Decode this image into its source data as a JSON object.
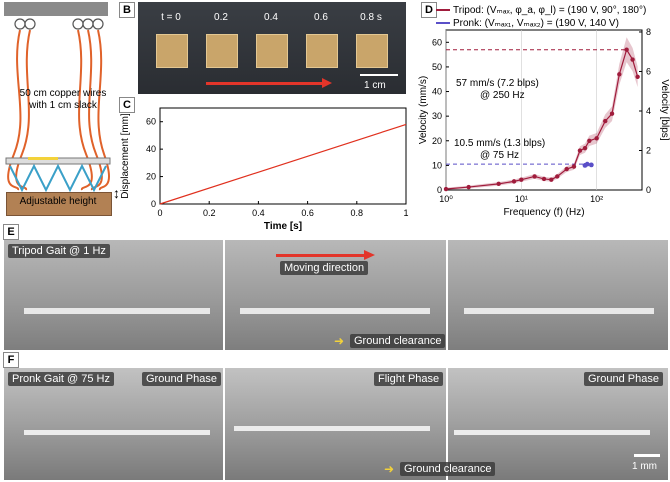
{
  "panels": {
    "A": {
      "label": "A",
      "wires_text_1": "50 cm copper wires",
      "wires_text_2": "with 1 cm slack",
      "height_text": "Adjustable height"
    },
    "B": {
      "label": "B",
      "times": [
        "t = 0",
        "0.2",
        "0.4",
        "0.6",
        "0.8 s"
      ],
      "scalebar": "1 cm"
    },
    "C": {
      "label": "C"
    },
    "D": {
      "label": "D",
      "legend_tripod": "Tripod: (Vₘₐₓ, φ_a, φ_l) = (190 V, 90°, 180°)",
      "legend_pronk": "Pronk: (Vₘₐₓ₁, Vₘₐₓ₂) = (190 V, 140 V)",
      "annot1_a": "57 mm/s (7.2 blps)",
      "annot1_b": "@ 250 Hz",
      "annot2_a": "10.5 mm/s (1.3 blps)",
      "annot2_b": "@ 75 Hz"
    },
    "E": {
      "label": "E",
      "gait": "Tripod Gait @ 1 Hz",
      "direction": "Moving direction",
      "clearance": "Ground clearance"
    },
    "F": {
      "label": "F",
      "gait": "Pronk Gait @ 75 Hz",
      "phase1": "Ground Phase",
      "phase2": "Flight Phase",
      "phase3": "Ground Phase",
      "clearance": "Ground clearance",
      "scalebar": "1 mm"
    }
  },
  "chart_data": [
    {
      "type": "line",
      "panel": "C",
      "xlabel": "Time [s]",
      "ylabel": "Displacement [mm]",
      "xlim": [
        0,
        1
      ],
      "ylim": [
        0,
        70
      ],
      "xticks": [
        0,
        0.2,
        0.4,
        0.6,
        0.8,
        1
      ],
      "yticks": [
        0,
        20,
        40,
        60
      ],
      "series": [
        {
          "x": [
            0,
            1
          ],
          "values": [
            0,
            58
          ],
          "color": "#e0301e"
        }
      ]
    },
    {
      "type": "line",
      "panel": "D",
      "xlabel": "Frequency (f) (Hz)",
      "ylabel": "Velocity (mm/s)",
      "ylabel2": "Velocity [blps]",
      "xscale": "log",
      "xlim": [
        1,
        400
      ],
      "ylim": [
        0,
        65
      ],
      "xticks": [
        "10⁰",
        "10¹",
        "10²"
      ],
      "yticks": [
        0,
        10,
        20,
        30,
        40,
        50,
        60
      ],
      "yticks2": [
        0,
        2,
        4,
        6,
        8
      ],
      "series": [
        {
          "name": "Tripod",
          "color": "#a01c3c",
          "x": [
            1,
            2,
            5,
            8,
            10,
            15,
            20,
            25,
            30,
            40,
            50,
            60,
            70,
            80,
            100,
            130,
            160,
            200,
            250,
            300,
            350
          ],
          "values": [
            0.4,
            1.2,
            2.5,
            3.5,
            4.2,
            5.5,
            4.5,
            4.2,
            5.5,
            8.5,
            9.5,
            16,
            17,
            20,
            21,
            28,
            31,
            47,
            57,
            53,
            46
          ]
        },
        {
          "name": "Pronk",
          "color": "#5a4fc8",
          "x": [
            70,
            75,
            85
          ],
          "values": [
            10,
            10.5,
            10.2
          ]
        }
      ]
    }
  ]
}
